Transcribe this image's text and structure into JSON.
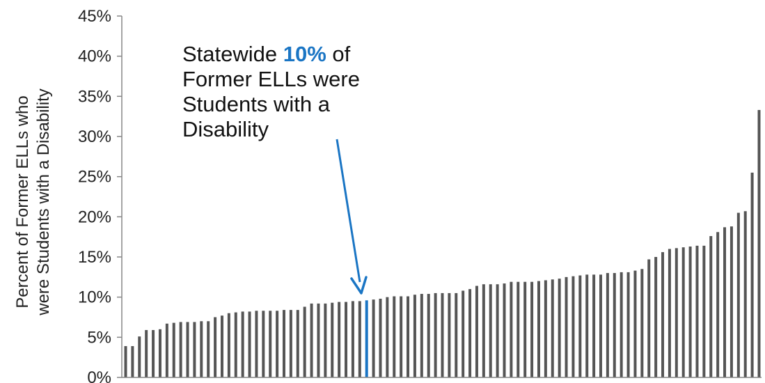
{
  "chart_data": {
    "type": "bar",
    "ylabel_lines": [
      "Percent of Former ELLs who",
      "were Students with a Disability"
    ],
    "yticks": [
      "0%",
      "5%",
      "10%",
      "15%",
      "20%",
      "25%",
      "30%",
      "35%",
      "40%",
      "45%"
    ],
    "ylim": [
      0,
      45
    ],
    "grid": false,
    "values": [
      3.9,
      3.9,
      5.1,
      5.9,
      5.9,
      6.0,
      6.7,
      6.8,
      6.9,
      6.9,
      6.9,
      7.0,
      7.0,
      7.5,
      7.7,
      8.0,
      8.1,
      8.2,
      8.2,
      8.3,
      8.3,
      8.3,
      8.3,
      8.4,
      8.4,
      8.4,
      8.8,
      9.2,
      9.2,
      9.2,
      9.3,
      9.4,
      9.4,
      9.5,
      9.5,
      9.6,
      9.7,
      9.8,
      10.0,
      10.1,
      10.1,
      10.1,
      10.3,
      10.4,
      10.4,
      10.5,
      10.5,
      10.5,
      10.5,
      10.8,
      11.0,
      11.4,
      11.6,
      11.6,
      11.6,
      11.7,
      11.9,
      11.9,
      11.9,
      11.9,
      12.0,
      12.1,
      12.2,
      12.3,
      12.5,
      12.6,
      12.7,
      12.8,
      12.8,
      12.8,
      13.0,
      13.0,
      13.1,
      13.1,
      13.3,
      13.5,
      14.7,
      15.0,
      15.6,
      16.0,
      16.1,
      16.2,
      16.3,
      16.4,
      16.4,
      17.6,
      18.1,
      18.7,
      18.8,
      20.5,
      20.7,
      25.5,
      33.3
    ],
    "highlight_index": 35,
    "bar_color": "#555555",
    "highlight_color": "#1a75c4",
    "axis_color": "#868686",
    "annotation": {
      "pre": "Statewide ",
      "highlight": "10%",
      "post_line1": " of",
      "lines": [
        "Former ELLs were",
        "Students with a",
        "Disability"
      ]
    }
  }
}
